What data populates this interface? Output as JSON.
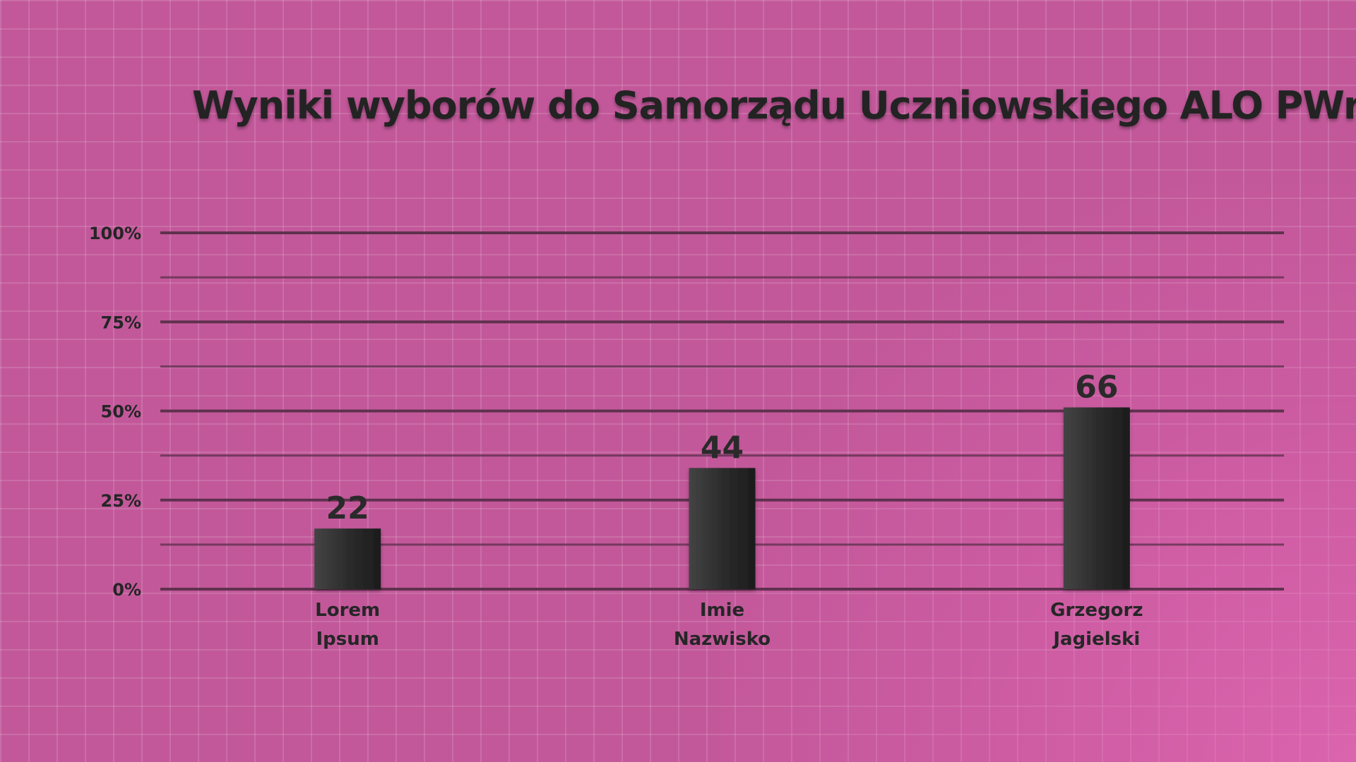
{
  "chart_data": {
    "type": "bar",
    "title": "Wyniki wyborów do Samorządu Uczniowskiego ALO PWr",
    "categories": [
      [
        "Lorem",
        "Ipsum"
      ],
      [
        "Imie",
        "Nazwisko"
      ],
      [
        "Grzegorz",
        "Jagielski"
      ]
    ],
    "series": [
      {
        "values": [
          17,
          34,
          51
        ],
        "data_labels": [
          "22",
          "44",
          "66"
        ]
      }
    ],
    "y_tick_labels": [
      "0%",
      "25%",
      "50%",
      "75%",
      "100%"
    ],
    "ylim": [
      0,
      100
    ],
    "grid": true,
    "legend": "none",
    "colors": {
      "background": "#c2589a",
      "bar": "#2b2b2b",
      "gridline": "#5a2f4a",
      "text": "#232323"
    }
  }
}
